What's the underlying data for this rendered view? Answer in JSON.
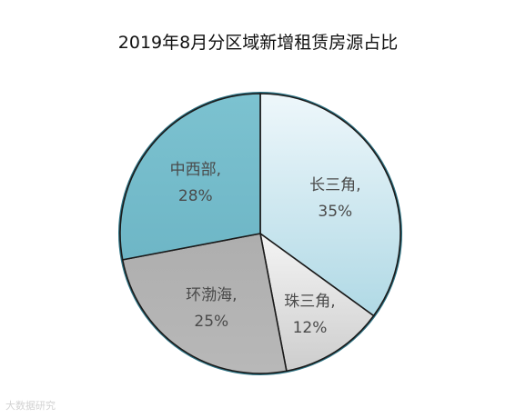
{
  "chart_data": {
    "type": "pie",
    "title": "2019年8月分区域新增租赁房源占比",
    "slices": [
      {
        "name": "长三角",
        "value": 35,
        "label_line1": "长三角,",
        "label_line2": "35%",
        "color": "#cfe6ee"
      },
      {
        "name": "珠三角",
        "value": 12,
        "label_line1": "珠三角,",
        "label_line2": "12%",
        "color": "#dcdcdc"
      },
      {
        "name": "环渤海",
        "value": 25,
        "label_line1": "环渤海,",
        "label_line2": "25%",
        "color": "#b3b3b3"
      },
      {
        "name": "中西部",
        "value": 28,
        "label_line1": "中西部,",
        "label_line2": "28%",
        "color": "#74bccb"
      }
    ]
  },
  "watermark": {
    "text": "大数据研究"
  }
}
